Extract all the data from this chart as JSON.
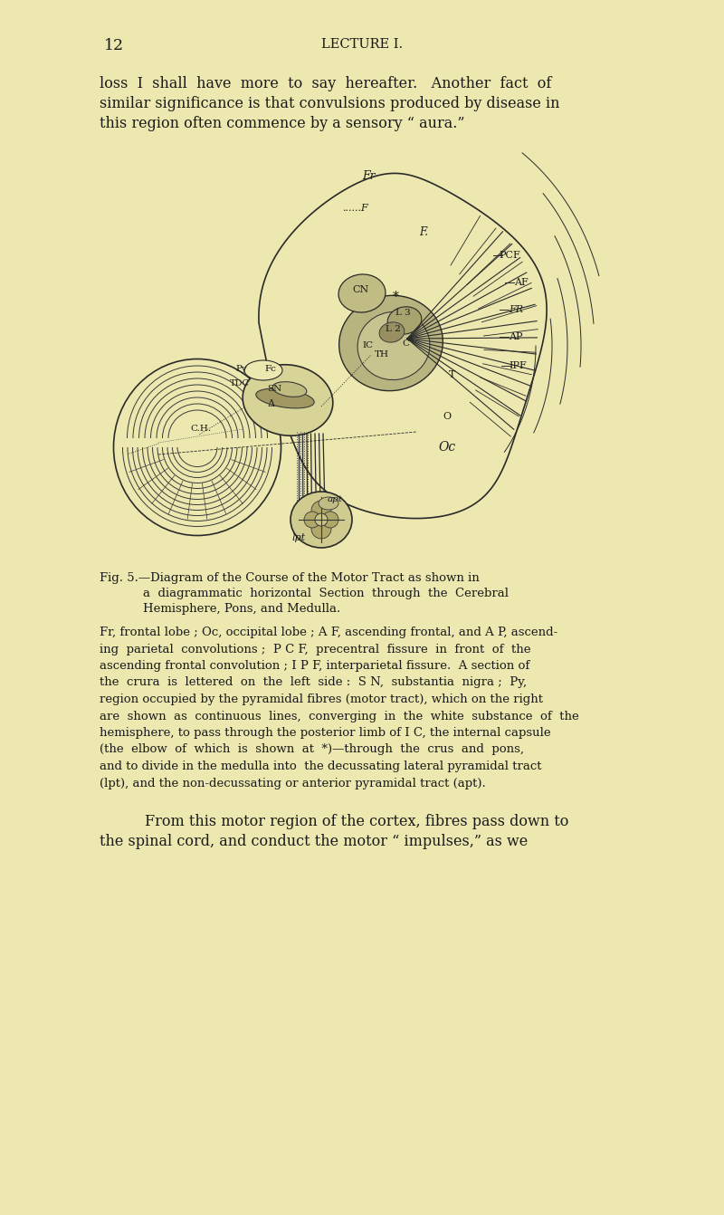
{
  "background_color": "#ece8b0",
  "text_color": "#1a1a1a",
  "page_number": "12",
  "header": "LECTURE I.",
  "para1_line1": "loss  I  shall  have  more  to  say  hereafter.   Another  fact  of",
  "para1_line2": "similar significance is that convulsions produced by disease in",
  "para1_line3": "this region often commence by a sensory “ aura.”",
  "fig_caption_line1": "Fig. 5.—Diagram of the Course of the Motor Tract as shown in",
  "fig_caption_line2": "a  diagrammatic  horizontal  Section  through  the  Cerebral",
  "fig_caption_line3": "Hemisphere, Pons, and Medulla.",
  "fig_desc_line1": "Fr, frontal lobe ; Oc, occipital lobe ; A F, ascending frontal, and A P, ascend-",
  "fig_desc_line2": "ing  parietal  convolutions ;  P C F,  precentral  fissure  in  front  of  the",
  "fig_desc_line3": "ascending frontal convolution ; I P F, interparietal fissure.  A section of",
  "fig_desc_line4": "the  crura  is  lettered  on  the  left  side :  S N,  substantia  nigra ;  Py,",
  "fig_desc_line5": "region occupied by the pyramidal fibres (motor tract), which on the right",
  "fig_desc_line6": "are  shown  as  continuous  lines,  converging  in  the  white  substance  of  the",
  "fig_desc_line7": "hemisphere, to pass through the posterior limb of I C, the internal capsule",
  "fig_desc_line8": "(the  elbow  of  which  is  shown  at  *)—through  the  crus  and  pons,",
  "fig_desc_line9": "and to divide in the medulla into  the decussating lateral pyramidal tract",
  "fig_desc_line10": "(lpt), and the non-decussating or anterior pyramidal tract (apt).",
  "para2_line1": "From this motor region of the cortex, fibres pass down to",
  "para2_line2": "the spinal cord, and conduct the motor “ impulses,” as we",
  "body_fontsize": 11.5,
  "header_fontsize": 10.5,
  "caption_fontsize": 9.5,
  "desc_fontsize": 10.5
}
